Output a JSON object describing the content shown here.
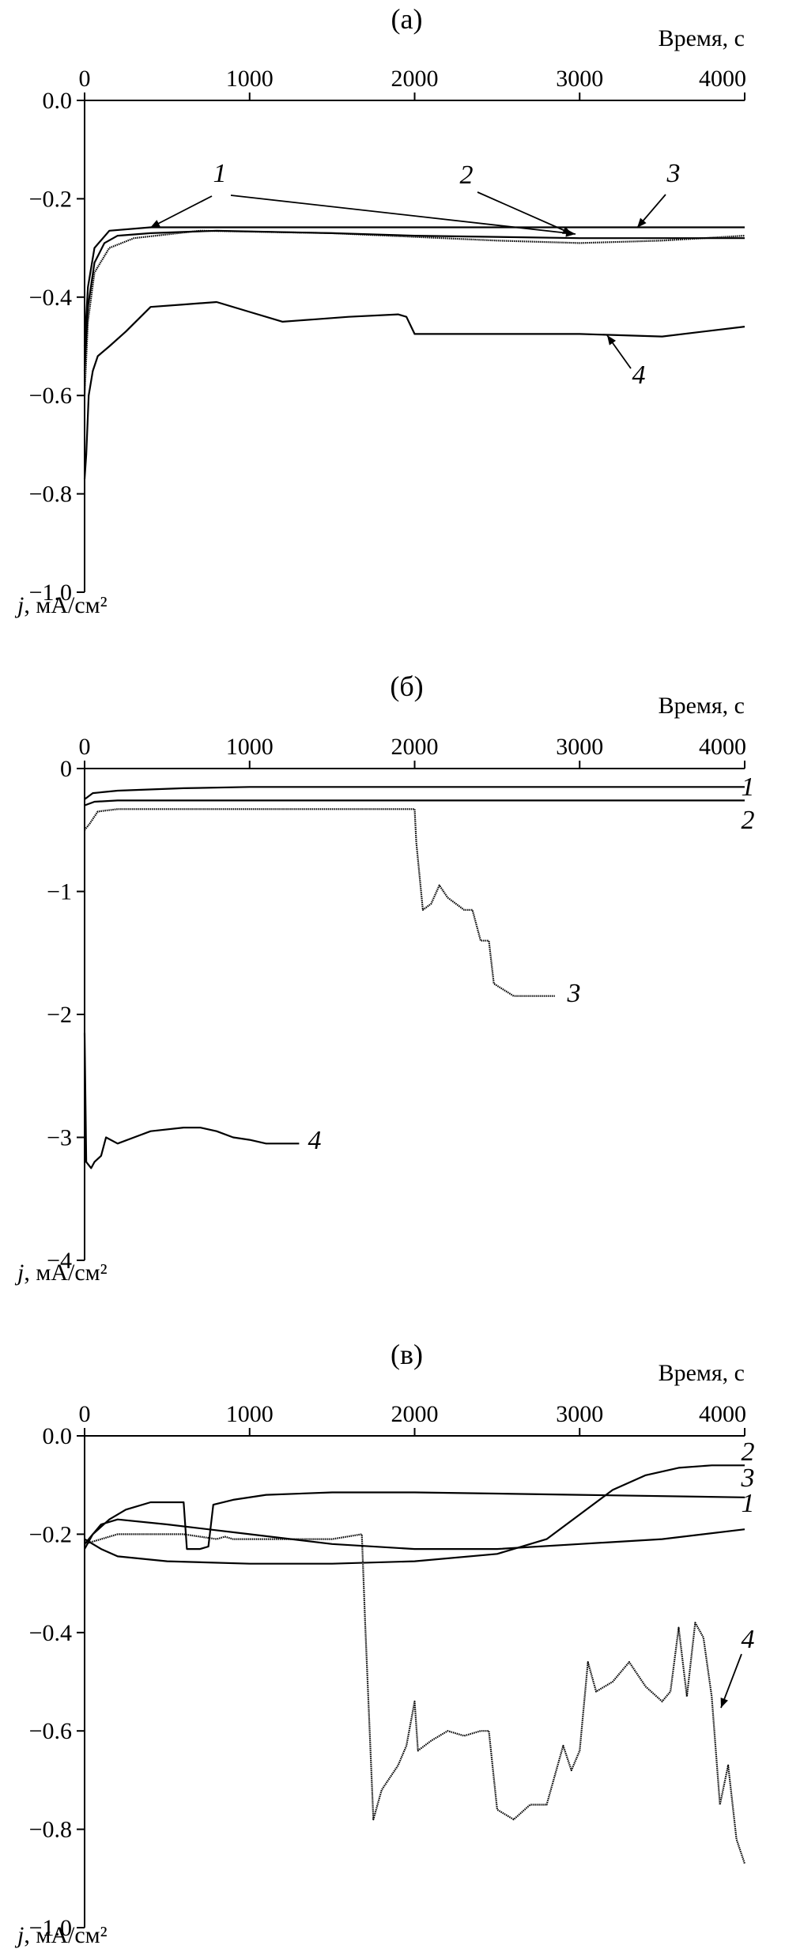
{
  "chart_data": [
    {
      "type": "line",
      "title": "(а)",
      "xlabel": "Время, с",
      "ylabel": "j, мА/см²",
      "xlim": [
        0,
        4000
      ],
      "ylim": [
        -1.0,
        0.0
      ],
      "xticks": [
        0,
        1000,
        2000,
        3000,
        4000
      ],
      "yticks": [
        0.0,
        -0.2,
        -0.4,
        -0.6,
        -0.8,
        -1.0
      ],
      "xtick_labels": [
        "0",
        "1000",
        "2000",
        "3000",
        "4000"
      ],
      "ytick_labels": [
        "0.0",
        "−0.2",
        "−0.4",
        "−0.6",
        "−0.8",
        "−1.0"
      ],
      "series": [
        {
          "name": "1",
          "points": [
            [
              0,
              -0.55
            ],
            [
              20,
              -0.42
            ],
            [
              60,
              -0.33
            ],
            [
              120,
              -0.29
            ],
            [
              200,
              -0.275
            ],
            [
              400,
              -0.27
            ],
            [
              800,
              -0.265
            ],
            [
              1500,
              -0.27
            ],
            [
              2000,
              -0.275
            ],
            [
              3000,
              -0.28
            ],
            [
              4000,
              -0.28
            ]
          ]
        },
        {
          "name": "2",
          "points": [
            [
              0,
              -0.6
            ],
            [
              20,
              -0.45
            ],
            [
              60,
              -0.35
            ],
            [
              150,
              -0.3
            ],
            [
              300,
              -0.28
            ],
            [
              700,
              -0.265
            ],
            [
              1500,
              -0.27
            ],
            [
              2500,
              -0.285
            ],
            [
              3000,
              -0.29
            ],
            [
              3500,
              -0.285
            ],
            [
              4000,
              -0.275
            ]
          ]
        },
        {
          "name": "3",
          "points": [
            [
              0,
              -0.5
            ],
            [
              20,
              -0.38
            ],
            [
              60,
              -0.3
            ],
            [
              150,
              -0.265
            ],
            [
              400,
              -0.258
            ],
            [
              1000,
              -0.258
            ],
            [
              2000,
              -0.258
            ],
            [
              3000,
              -0.258
            ],
            [
              4000,
              -0.258
            ]
          ]
        },
        {
          "name": "4",
          "points": [
            [
              0,
              -0.77
            ],
            [
              10,
              -0.72
            ],
            [
              25,
              -0.6
            ],
            [
              50,
              -0.55
            ],
            [
              80,
              -0.52
            ],
            [
              150,
              -0.5
            ],
            [
              250,
              -0.47
            ],
            [
              400,
              -0.42
            ],
            [
              600,
              -0.415
            ],
            [
              800,
              -0.41
            ],
            [
              1000,
              -0.43
            ],
            [
              1200,
              -0.45
            ],
            [
              1400,
              -0.445
            ],
            [
              1600,
              -0.44
            ],
            [
              1900,
              -0.435
            ],
            [
              1950,
              -0.44
            ],
            [
              2000,
              -0.475
            ],
            [
              2500,
              -0.475
            ],
            [
              3000,
              -0.475
            ],
            [
              3500,
              -0.48
            ],
            [
              4000,
              -0.46
            ]
          ]
        }
      ],
      "annotations": [
        "1",
        "2",
        "3",
        "4"
      ]
    },
    {
      "type": "line",
      "title": "(б)",
      "xlabel": "Время, с",
      "ylabel": "j, мА/см²",
      "xlim": [
        0,
        4000
      ],
      "ylim": [
        -4,
        0
      ],
      "xticks": [
        0,
        1000,
        2000,
        3000,
        4000
      ],
      "yticks": [
        0,
        -1,
        -2,
        -3,
        -4
      ],
      "xtick_labels": [
        "0",
        "1000",
        "2000",
        "3000",
        "4000"
      ],
      "ytick_labels": [
        "0",
        "−1",
        "−2",
        "−3",
        "−4"
      ],
      "series": [
        {
          "name": "1",
          "points": [
            [
              0,
              -0.25
            ],
            [
              50,
              -0.2
            ],
            [
              200,
              -0.18
            ],
            [
              600,
              -0.16
            ],
            [
              1000,
              -0.15
            ],
            [
              2000,
              -0.15
            ],
            [
              3000,
              -0.15
            ],
            [
              4000,
              -0.15
            ]
          ]
        },
        {
          "name": "2",
          "points": [
            [
              0,
              -0.3
            ],
            [
              60,
              -0.27
            ],
            [
              200,
              -0.26
            ],
            [
              1000,
              -0.26
            ],
            [
              2000,
              -0.26
            ],
            [
              3000,
              -0.26
            ],
            [
              4000,
              -0.26
            ]
          ]
        },
        {
          "name": "3",
          "points": [
            [
              0,
              -0.5
            ],
            [
              30,
              -0.45
            ],
            [
              80,
              -0.35
            ],
            [
              200,
              -0.33
            ],
            [
              1000,
              -0.33
            ],
            [
              1800,
              -0.33
            ],
            [
              2000,
              -0.33
            ],
            [
              2010,
              -0.6
            ],
            [
              2050,
              -1.15
            ],
            [
              2100,
              -1.1
            ],
            [
              2150,
              -0.95
            ],
            [
              2200,
              -1.05
            ],
            [
              2250,
              -1.1
            ],
            [
              2300,
              -1.15
            ],
            [
              2350,
              -1.15
            ],
            [
              2400,
              -1.4
            ],
            [
              2450,
              -1.4
            ],
            [
              2480,
              -1.75
            ],
            [
              2600,
              -1.85
            ],
            [
              2800,
              -1.85
            ],
            [
              2850,
              -1.85
            ]
          ]
        },
        {
          "name": "4",
          "points": [
            [
              0,
              -2.15
            ],
            [
              10,
              -3.2
            ],
            [
              40,
              -3.25
            ],
            [
              60,
              -3.2
            ],
            [
              100,
              -3.15
            ],
            [
              130,
              -3.0
            ],
            [
              200,
              -3.05
            ],
            [
              300,
              -3.0
            ],
            [
              400,
              -2.95
            ],
            [
              600,
              -2.92
            ],
            [
              700,
              -2.92
            ],
            [
              800,
              -2.95
            ],
            [
              900,
              -3.0
            ],
            [
              1000,
              -3.02
            ],
            [
              1100,
              -3.05
            ],
            [
              1200,
              -3.05
            ],
            [
              1300,
              -3.05
            ]
          ]
        }
      ],
      "annotations": [
        "1",
        "2",
        "3",
        "4"
      ]
    },
    {
      "type": "line",
      "title": "(в)",
      "xlabel": "Время, с",
      "ylabel": "j, мА/см²",
      "xlim": [
        0,
        4000
      ],
      "ylim": [
        -1.0,
        0.0
      ],
      "xticks": [
        0,
        1000,
        2000,
        3000,
        4000
      ],
      "yticks": [
        0.0,
        -0.2,
        -0.4,
        -0.6,
        -0.8,
        -1.0
      ],
      "xtick_labels": [
        "0",
        "1000",
        "2000",
        "3000",
        "4000"
      ],
      "ytick_labels": [
        "0.0",
        "−0.2",
        "−0.4",
        "−0.6",
        "−0.8",
        "−1.0"
      ],
      "series": [
        {
          "name": "1",
          "points": [
            [
              0,
              -0.22
            ],
            [
              100,
              -0.18
            ],
            [
              200,
              -0.17
            ],
            [
              500,
              -0.18
            ],
            [
              1000,
              -0.2
            ],
            [
              1500,
              -0.22
            ],
            [
              2000,
              -0.23
            ],
            [
              2500,
              -0.23
            ],
            [
              3000,
              -0.22
            ],
            [
              3500,
              -0.21
            ],
            [
              4000,
              -0.19
            ]
          ]
        },
        {
          "name": "2",
          "points": [
            [
              0,
              -0.21
            ],
            [
              100,
              -0.23
            ],
            [
              200,
              -0.245
            ],
            [
              500,
              -0.255
            ],
            [
              1000,
              -0.26
            ],
            [
              1500,
              -0.26
            ],
            [
              2000,
              -0.255
            ],
            [
              2500,
              -0.24
            ],
            [
              2800,
              -0.21
            ],
            [
              3000,
              -0.16
            ],
            [
              3200,
              -0.11
            ],
            [
              3400,
              -0.08
            ],
            [
              3600,
              -0.065
            ],
            [
              3800,
              -0.06
            ],
            [
              4000,
              -0.06
            ]
          ]
        },
        {
          "name": "3",
          "points": [
            [
              0,
              -0.23
            ],
            [
              50,
              -0.2
            ],
            [
              150,
              -0.17
            ],
            [
              250,
              -0.15
            ],
            [
              400,
              -0.135
            ],
            [
              600,
              -0.135
            ],
            [
              620,
              -0.23
            ],
            [
              700,
              -0.23
            ],
            [
              750,
              -0.225
            ],
            [
              780,
              -0.14
            ],
            [
              900,
              -0.13
            ],
            [
              1100,
              -0.12
            ],
            [
              1500,
              -0.115
            ],
            [
              2000,
              -0.115
            ],
            [
              3000,
              -0.12
            ],
            [
              4000,
              -0.125
            ]
          ]
        },
        {
          "name": "4",
          "points": [
            [
              0,
              -0.22
            ],
            [
              100,
              -0.21
            ],
            [
              200,
              -0.2
            ],
            [
              400,
              -0.2
            ],
            [
              600,
              -0.2
            ],
            [
              800,
              -0.21
            ],
            [
              850,
              -0.205
            ],
            [
              900,
              -0.21
            ],
            [
              1200,
              -0.21
            ],
            [
              1500,
              -0.21
            ],
            [
              1680,
              -0.2
            ],
            [
              1700,
              -0.38
            ],
            [
              1750,
              -0.78
            ],
            [
              1800,
              -0.72
            ],
            [
              1900,
              -0.67
            ],
            [
              1950,
              -0.63
            ],
            [
              2000,
              -0.54
            ],
            [
              2020,
              -0.64
            ],
            [
              2100,
              -0.62
            ],
            [
              2200,
              -0.6
            ],
            [
              2300,
              -0.61
            ],
            [
              2400,
              -0.6
            ],
            [
              2450,
              -0.6
            ],
            [
              2500,
              -0.76
            ],
            [
              2600,
              -0.78
            ],
            [
              2700,
              -0.75
            ],
            [
              2800,
              -0.75
            ],
            [
              2900,
              -0.63
            ],
            [
              2950,
              -0.68
            ],
            [
              3000,
              -0.64
            ],
            [
              3050,
              -0.46
            ],
            [
              3100,
              -0.52
            ],
            [
              3200,
              -0.5
            ],
            [
              3300,
              -0.46
            ],
            [
              3400,
              -0.51
            ],
            [
              3500,
              -0.54
            ],
            [
              3550,
              -0.52
            ],
            [
              3600,
              -0.39
            ],
            [
              3650,
              -0.53
            ],
            [
              3700,
              -0.38
            ],
            [
              3750,
              -0.41
            ],
            [
              3800,
              -0.53
            ],
            [
              3850,
              -0.75
            ],
            [
              3900,
              -0.67
            ],
            [
              3950,
              -0.82
            ],
            [
              4000,
              -0.87
            ]
          ]
        }
      ],
      "annotations": [
        "1",
        "2",
        "3",
        "4"
      ]
    }
  ]
}
